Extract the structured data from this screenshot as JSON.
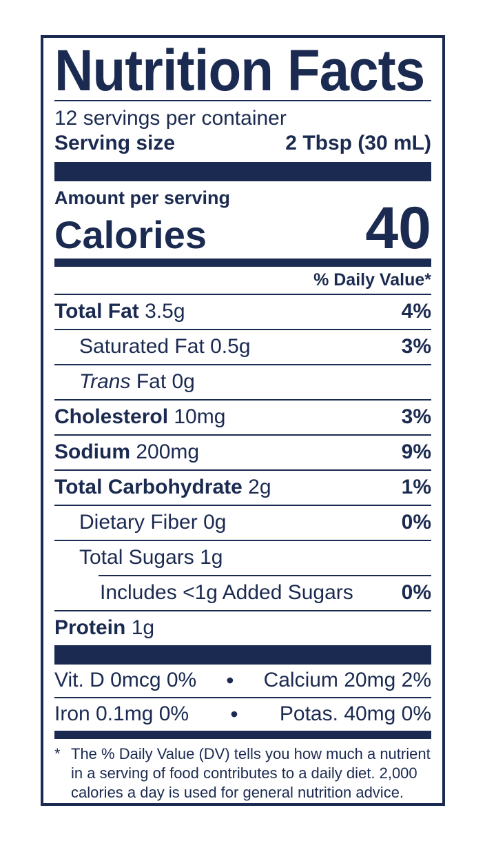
{
  "label": {
    "title": "Nutrition Facts",
    "servings_per_container": "12 servings per container",
    "serving_size": {
      "label": "Serving size",
      "value": "2 Tbsp (30 mL)"
    },
    "amount_per_serving": "Amount per serving",
    "calories": {
      "label": "Calories",
      "value": "40"
    },
    "daily_value_header": "% Daily Value*",
    "nutrient_rows": [
      {
        "name": "Total Fat",
        "bold": true,
        "italic": false,
        "amount": "3.5g",
        "dv": "4%",
        "indent": 0,
        "rule_after": "full"
      },
      {
        "name": "Saturated Fat",
        "bold": false,
        "italic": false,
        "amount": "0.5g",
        "dv": "3%",
        "indent": 1,
        "rule_after": "full"
      },
      {
        "name": "Trans",
        "bold": false,
        "italic": true,
        "amount": "Fat 0g",
        "dv": "",
        "indent": 1,
        "rule_after": "full"
      },
      {
        "name": "Cholesterol",
        "bold": true,
        "italic": false,
        "amount": "10mg",
        "dv": "3%",
        "indent": 0,
        "rule_after": "full"
      },
      {
        "name": "Sodium",
        "bold": true,
        "italic": false,
        "amount": "200mg",
        "dv": "9%",
        "indent": 0,
        "rule_after": "full"
      },
      {
        "name": "Total Carbohydrate",
        "bold": true,
        "italic": false,
        "amount": "2g",
        "dv": "1%",
        "indent": 0,
        "rule_after": "full"
      },
      {
        "name": "Dietary Fiber",
        "bold": false,
        "italic": false,
        "amount": "0g",
        "dv": "0%",
        "indent": 1,
        "rule_after": "full"
      },
      {
        "name": "Total Sugars",
        "bold": false,
        "italic": false,
        "amount": "1g",
        "dv": "",
        "indent": 1,
        "rule_after": "indent"
      },
      {
        "name": "Includes <1g Added Sugars",
        "bold": false,
        "italic": false,
        "amount": "",
        "dv": "0%",
        "indent": 2,
        "rule_after": "full"
      },
      {
        "name": "Protein",
        "bold": true,
        "italic": false,
        "amount": "1g",
        "dv": "",
        "indent": 0,
        "rule_after": "none"
      }
    ],
    "micronutrient_rows": [
      {
        "left": "Vit. D 0mcg 0%",
        "bullet": "•",
        "right": "Calcium 20mg 2%"
      },
      {
        "left": "Iron 0.1mg 0%",
        "bullet": "•",
        "right": "Potas. 40mg 0%"
      }
    ],
    "footnote": {
      "marker": "*",
      "text": "The % Daily Value (DV) tells you how much a nutrient in a serving of food contributes to a daily diet. 2,000 calories a day is used for general nutrition advice."
    },
    "colors": {
      "navy": "#1b2a50",
      "background": "#ffffff"
    }
  }
}
